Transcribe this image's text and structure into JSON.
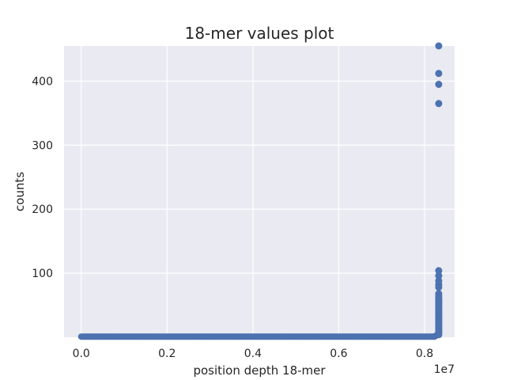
{
  "chart_data": {
    "type": "scatter",
    "title": "18-mer values plot",
    "xlabel": "position depth 18-mer",
    "ylabel": "counts",
    "x_offset_label": "1e7",
    "x_scale": 10000000,
    "xlim": [
      -400000,
      8700000
    ],
    "ylim": [
      0,
      455
    ],
    "xticks": [
      0.0,
      0.2,
      0.4,
      0.6,
      0.8
    ],
    "xtick_labels": [
      "0.0",
      "0.2",
      "0.4",
      "0.6",
      "0.8"
    ],
    "yticks": [
      100,
      200,
      300,
      400
    ],
    "ytick_labels": [
      "100",
      "200",
      "300",
      "400"
    ],
    "grid": true,
    "background": "#eaeaf2",
    "point_color": "#4c72b0",
    "baseline": {
      "x_start": 0,
      "x_end": 8230000,
      "count": 1
    },
    "ramp": {
      "x_start": 8230000,
      "x_end": 8330000,
      "count_start": 1,
      "count_end": 5
    },
    "series": [
      {
        "x": [
          8330000,
          8330000,
          8330000,
          8330000,
          8330000,
          8330000,
          8330000,
          8330000,
          8330000,
          8330000,
          8330000,
          8330000,
          8330000,
          8330000,
          8330000,
          8330000,
          8330000,
          8330000,
          8330000,
          8330000,
          8330000,
          8330000,
          8330000,
          8330000,
          8330000,
          8330000,
          8330000,
          8330000,
          8330000,
          8330000,
          8330000,
          8330000,
          8330000,
          8330000,
          8330000,
          8330000,
          8330000,
          8330000,
          8330000,
          8330000,
          8330000
        ],
        "y": [
          455,
          412,
          395,
          365,
          104,
          96,
          88,
          82,
          78,
          68,
          65,
          62,
          60,
          58,
          56,
          54,
          52,
          50,
          48,
          46,
          44,
          42,
          40,
          38,
          36,
          34,
          32,
          30,
          28,
          26,
          24,
          22,
          20,
          18,
          16,
          14,
          12,
          10,
          8,
          6,
          4
        ]
      }
    ]
  }
}
